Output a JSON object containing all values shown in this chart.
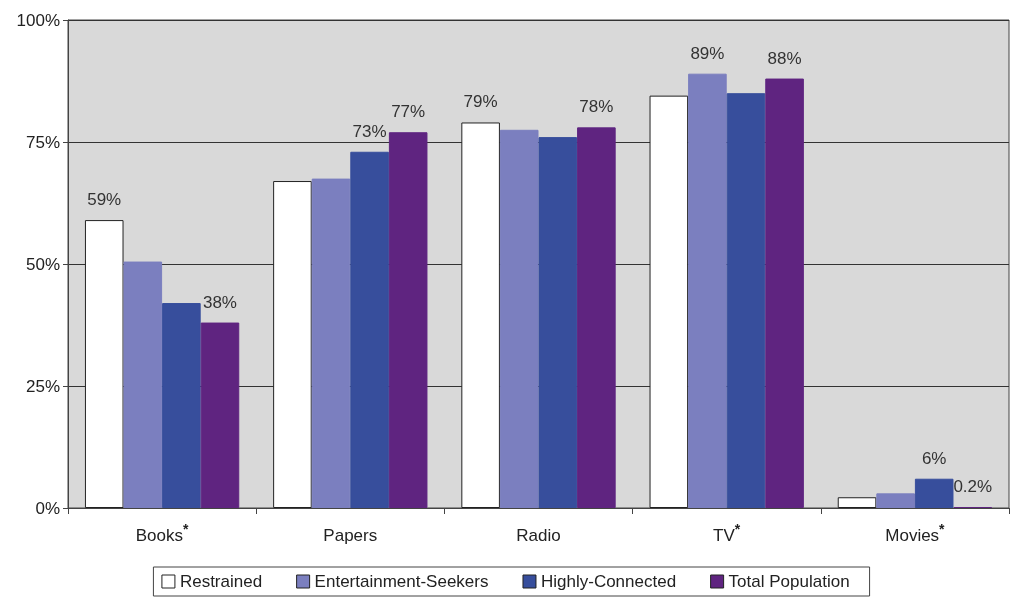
{
  "chart_data": {
    "type": "bar",
    "categories": [
      "Books$^{*}$",
      "Papers",
      "Radio",
      "TV$^{*}$",
      "Movies$^{*}$"
    ],
    "series": [
      {
        "name": "Restrained",
        "color": "#ffffff",
        "values": [
          59,
          67,
          79,
          84.5,
          2.2
        ],
        "value_labels": [
          "59%",
          null,
          "79%",
          null,
          null
        ]
      },
      {
        "name": "Entertainment-Seekers",
        "color": "#7b7fbf",
        "values": [
          50.5,
          67.5,
          77.5,
          89,
          3
        ],
        "value_labels": [
          null,
          null,
          null,
          "89%",
          null
        ]
      },
      {
        "name": "Highly-Connected",
        "color": "#374e9c",
        "values": [
          42,
          73,
          76,
          85,
          6
        ],
        "value_labels": [
          null,
          "73%",
          null,
          null,
          "6%"
        ]
      },
      {
        "name": "Total Population",
        "color": "#5f2480",
        "values": [
          38,
          77,
          78,
          88,
          0.2
        ],
        "value_labels": [
          "38%",
          "77%",
          "78%",
          "88%",
          "0.2%"
        ]
      }
    ],
    "ylim": [
      0,
      100
    ],
    "yticks": [
      {
        "value": 0,
        "label": "0%"
      },
      {
        "value": 25,
        "label": "25%"
      },
      {
        "value": 50,
        "label": "50%"
      },
      {
        "value": 75,
        "label": "75%"
      },
      {
        "value": 100,
        "label": "100%"
      }
    ],
    "grid": "y",
    "legend": "bottom"
  }
}
